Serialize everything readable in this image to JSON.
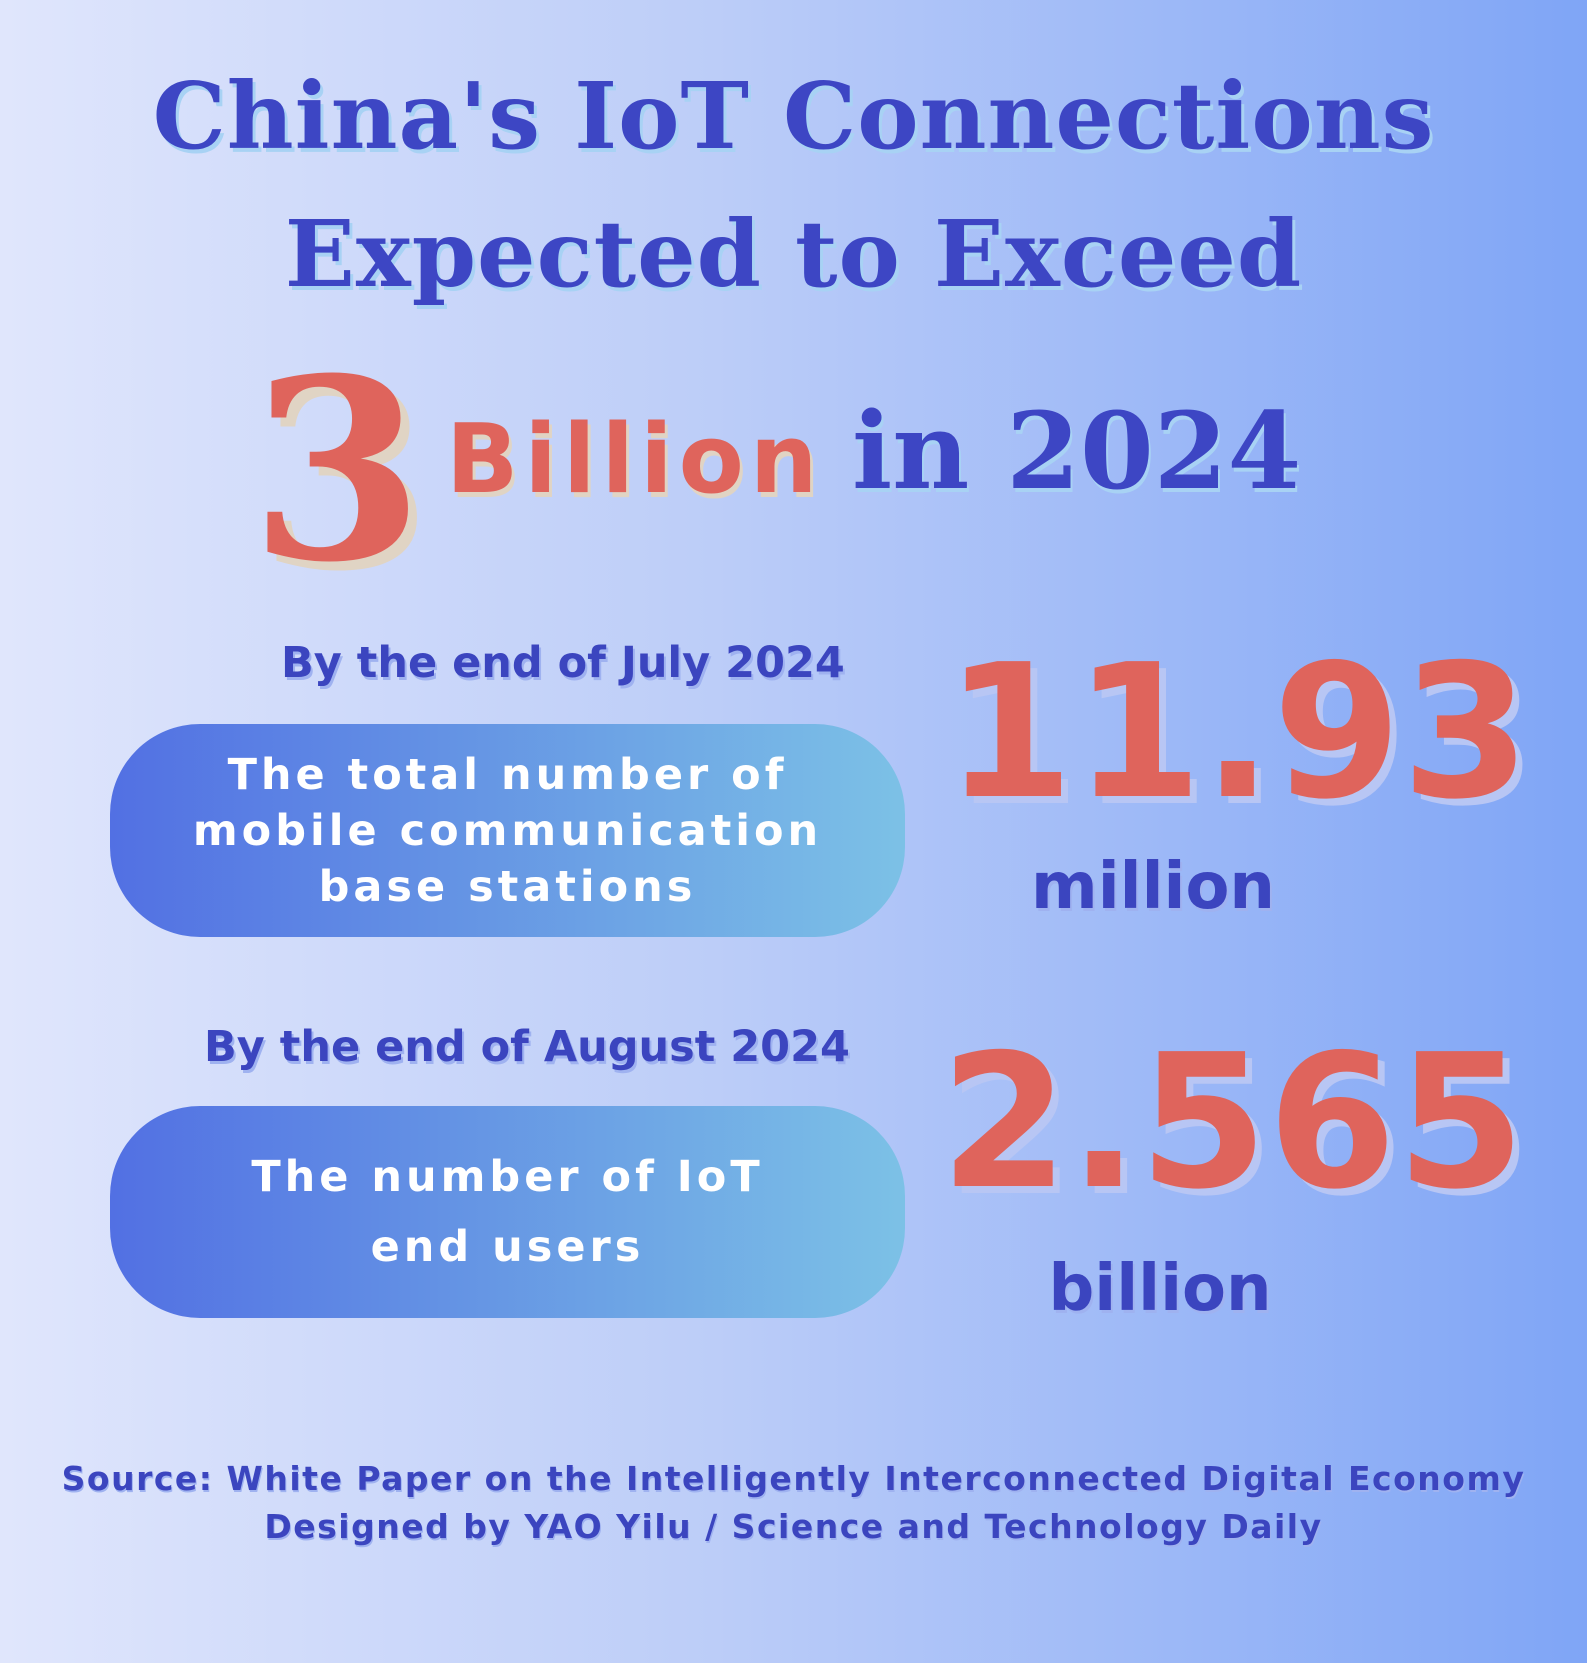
{
  "title": {
    "line1": "China's IoT Connections",
    "line2": "Expected to Exceed"
  },
  "headline": {
    "number": "3",
    "unit": "Billion",
    "suffix": "in 2024"
  },
  "stats": [
    {
      "date": "By the end of July 2024",
      "label_lines": [
        "The total number of",
        "mobile communication",
        "base stations"
      ],
      "value": "11.93",
      "unit": "million"
    },
    {
      "date": "By the end of August 2024",
      "label_lines": [
        "The number of IoT",
        "end users"
      ],
      "value": "2.565",
      "unit": "billion"
    }
  ],
  "footer": {
    "source": "Source: White Paper on the Intelligently Interconnected Digital Economy",
    "credit": "Designed by YAO Yilu / Science and Technology Daily"
  },
  "colors": {
    "blue": "#3d46c4",
    "red": "#df645c",
    "pill_start": "#5270e3",
    "pill_end": "#7cc1e6"
  }
}
